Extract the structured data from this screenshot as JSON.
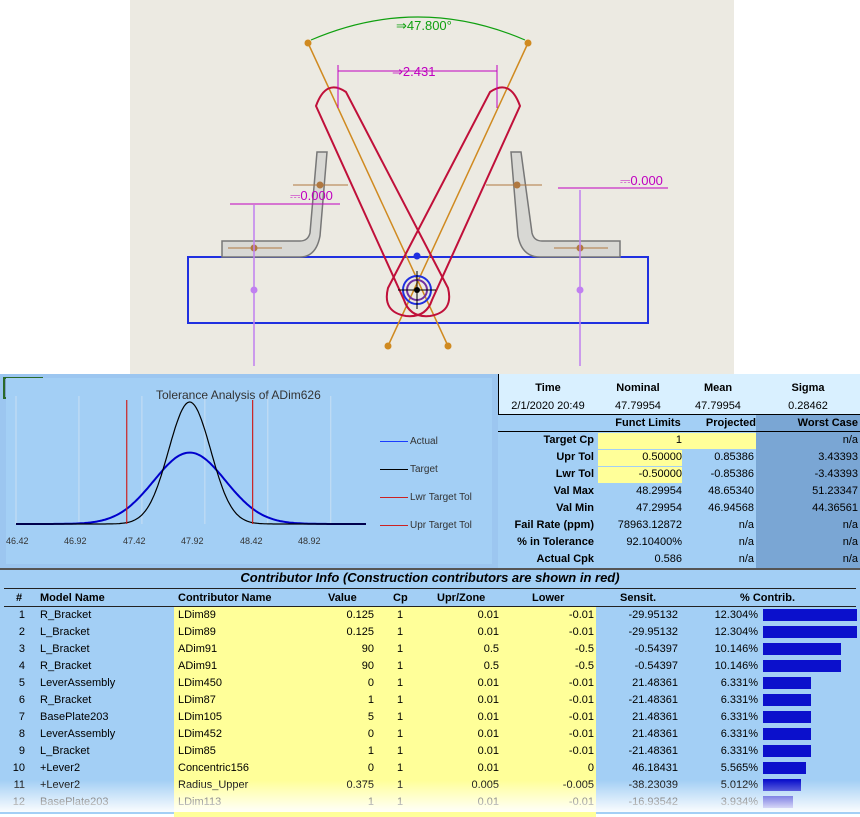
{
  "viewport": {
    "angle_label": "⇒47.800°",
    "gap_label": "⇒2.431",
    "left_dim_label": "⎓0.000",
    "right_dim_label": "⎓0.000"
  },
  "chart": {
    "title": "Tolerance Analysis of ADim626",
    "legend": [
      "Actual",
      "Target",
      "Lwr Target Tol",
      "Upr Target Tol"
    ],
    "ticks": [
      "46.42",
      "46.92",
      "47.42",
      "47.92",
      "48.42",
      "48.92"
    ]
  },
  "chart_data": {
    "type": "line",
    "title": "Tolerance Analysis of ADim626",
    "xlim": [
      46.42,
      49.2
    ],
    "series": [
      {
        "name": "Actual",
        "mean": 47.79954,
        "sigma": 0.28462,
        "color": "#0000cc"
      },
      {
        "name": "Target",
        "mean": 47.79954,
        "sigma": 0.16667,
        "color": "#000000"
      },
      {
        "name": "Lwr Target Tol",
        "x": 47.29954,
        "color": "#cc2222"
      },
      {
        "name": "Upr Target Tol",
        "x": 48.29954,
        "color": "#cc2222"
      }
    ],
    "grid": true
  },
  "stats": {
    "top_headers": [
      "Time",
      "Nominal",
      "Mean",
      "Sigma"
    ],
    "top_values": [
      "2/1/2020 20:49",
      "47.79954",
      "47.79954",
      "0.28462"
    ],
    "col_headers": [
      "Funct Limits",
      "Projected",
      "Worst Case"
    ],
    "rows": [
      {
        "label": "Target Cp",
        "funct": "1",
        "proj": "",
        "worst": "n/a"
      },
      {
        "label": "Upr Tol",
        "funct": "0.50000",
        "proj": "0.85386",
        "worst": "3.43393"
      },
      {
        "label": "Lwr Tol",
        "funct": "-0.50000",
        "proj": "-0.85386",
        "worst": "-3.43393"
      },
      {
        "label": "Val Max",
        "funct": "48.29954",
        "proj": "48.65340",
        "worst": "51.23347"
      },
      {
        "label": "Val Min",
        "funct": "47.29954",
        "proj": "46.94568",
        "worst": "44.36561"
      },
      {
        "label": "Fail Rate (ppm)",
        "funct": "78963.12872",
        "proj": "n/a",
        "worst": "n/a"
      },
      {
        "label": "% in Tolerance",
        "funct": "92.10400%",
        "proj": "n/a",
        "worst": "n/a"
      },
      {
        "label": "Actual Cpk",
        "funct": "0.586",
        "proj": "n/a",
        "worst": "n/a"
      }
    ]
  },
  "contrib": {
    "title": "Contributor Info (Construction contributors are shown in red)",
    "headers": [
      "#",
      "Model Name",
      "Contributor Name",
      "Value",
      "Cp",
      "Upr/Zone",
      "Lower",
      "Sensit.",
      "% Contrib."
    ],
    "rows": [
      {
        "n": "1",
        "model": "R_Bracket",
        "name": "LDim89",
        "value": "0.125",
        "cp": "1",
        "upr": "0.01",
        "lower": "-0.01",
        "sens": "-29.95132",
        "pct": "12.304%",
        "pct_value": 12.304
      },
      {
        "n": "2",
        "model": "L_Bracket",
        "name": "LDim89",
        "value": "0.125",
        "cp": "1",
        "upr": "0.01",
        "lower": "-0.01",
        "sens": "-29.95132",
        "pct": "12.304%",
        "pct_value": 12.304
      },
      {
        "n": "3",
        "model": "L_Bracket",
        "name": "ADim91",
        "value": "90",
        "cp": "1",
        "upr": "0.5",
        "lower": "-0.5",
        "sens": "-0.54397",
        "pct": "10.146%",
        "pct_value": 10.146
      },
      {
        "n": "4",
        "model": "R_Bracket",
        "name": "ADim91",
        "value": "90",
        "cp": "1",
        "upr": "0.5",
        "lower": "-0.5",
        "sens": "-0.54397",
        "pct": "10.146%",
        "pct_value": 10.146
      },
      {
        "n": "5",
        "model": "LeverAssembly",
        "name": "LDim450",
        "value": "0",
        "cp": "1",
        "upr": "0.01",
        "lower": "-0.01",
        "sens": "21.48361",
        "pct": "6.331%",
        "pct_value": 6.331
      },
      {
        "n": "6",
        "model": "R_Bracket",
        "name": "LDim87",
        "value": "1",
        "cp": "1",
        "upr": "0.01",
        "lower": "-0.01",
        "sens": "-21.48361",
        "pct": "6.331%",
        "pct_value": 6.331
      },
      {
        "n": "7",
        "model": "BasePlate203",
        "name": "LDim105",
        "value": "5",
        "cp": "1",
        "upr": "0.01",
        "lower": "-0.01",
        "sens": "21.48361",
        "pct": "6.331%",
        "pct_value": 6.331
      },
      {
        "n": "8",
        "model": "LeverAssembly",
        "name": "LDim452",
        "value": "0",
        "cp": "1",
        "upr": "0.01",
        "lower": "-0.01",
        "sens": "21.48361",
        "pct": "6.331%",
        "pct_value": 6.331
      },
      {
        "n": "9",
        "model": "L_Bracket",
        "name": "LDim85",
        "value": "1",
        "cp": "1",
        "upr": "0.01",
        "lower": "-0.01",
        "sens": "-21.48361",
        "pct": "6.331%",
        "pct_value": 6.331
      },
      {
        "n": "10",
        "model": "+Lever2",
        "name": "Concentric156",
        "value": "0",
        "cp": "1",
        "upr": "0.01",
        "lower": "0",
        "sens": "46.18431",
        "pct": "5.565%",
        "pct_value": 5.565
      },
      {
        "n": "11",
        "model": "+Lever2",
        "name": "Radius_Upper",
        "value": "0.375",
        "cp": "1",
        "upr": "0.005",
        "lower": "-0.005",
        "sens": "-38.23039",
        "pct": "5.012%",
        "pct_value": 5.012
      },
      {
        "n": "12",
        "model": "BasePlate203",
        "name": "LDim113",
        "value": "1",
        "cp": "1",
        "upr": "0.01",
        "lower": "-0.01",
        "sens": "-16.93542",
        "pct": "3.934%",
        "pct_value": 3.934
      }
    ]
  }
}
